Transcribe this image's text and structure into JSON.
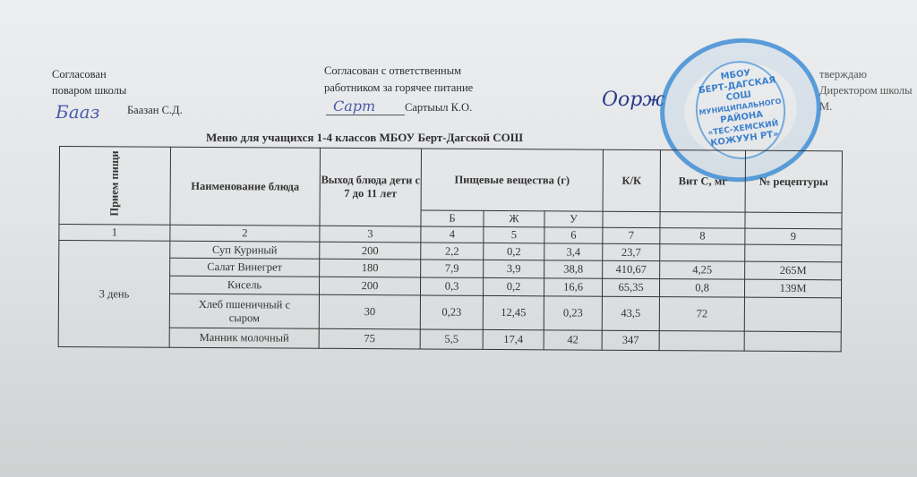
{
  "approvals": {
    "cook": {
      "line1": "Согласован",
      "line2": "поваром школы",
      "name": "Баазан С.Д.",
      "signature": "Бааз"
    },
    "hot_meals": {
      "line1": "Согласован с ответственным",
      "line2": "работником за горячее питание",
      "name": "Сартыыл К.О.",
      "signature": "Сарт"
    },
    "director": {
      "line1": "тверждаю",
      "line2": "Директором школы",
      "name": "М.",
      "signature": "Оорж"
    }
  },
  "stamp": {
    "center": [
      "МБОУ",
      "БЕРТ-ДАГСКАЯ",
      "СОШ",
      "МУНИЦИПАЛЬНОГО",
      "РАЙОНА",
      "«ТЕС-ХЕМСКИЙ",
      "КОЖУУН РТ»"
    ],
    "color": "#2f82d0"
  },
  "title": "Меню для учащихся  1-4 классов МБОУ Берт-Дагской СОШ",
  "table": {
    "headers": {
      "meal": "Прием пищи",
      "dish": "Наименование блюда",
      "yield": "Выход блюда дети с 7 до 11 лет",
      "nutrients": "Пищевые вещества (г)",
      "kcal": "К/К",
      "vitc": "Вит С, мг",
      "recipe": "№ рецептуры"
    },
    "sub": [
      "Б",
      "Ж",
      "У"
    ],
    "numbers": [
      "1",
      "2",
      "3",
      "4",
      "5",
      "6",
      "7",
      "8",
      "9"
    ],
    "day": "3 день",
    "rows": [
      {
        "dish": "Суп Куриный",
        "yield": "200",
        "b": "2,2",
        "z": "0,2",
        "u": "3,4",
        "kk": "23,7",
        "vitc": "",
        "recipe": ""
      },
      {
        "dish": "Салат Винегрет",
        "yield": "180",
        "b": "7,9",
        "z": "3,9",
        "u": "38,8",
        "kk": "410,67",
        "vitc": "4,25",
        "recipe": "265М"
      },
      {
        "dish": "Кисель",
        "yield": "200",
        "b": "0,3",
        "z": "0,2",
        "u": "16,6",
        "kk": "65,35",
        "vitc": "0,8",
        "recipe": "139М"
      },
      {
        "dish": "Хлеб пшеничный с сыром",
        "yield": "30",
        "b": "0,23",
        "z": "12,45",
        "u": "0,23",
        "kk": "43,5",
        "vitc": "72",
        "recipe": ""
      },
      {
        "dish": "Манник молочный",
        "yield": "75",
        "b": "5,5",
        "z": "17,4",
        "u": "42",
        "kk": "347",
        "vitc": "",
        "recipe": ""
      }
    ]
  }
}
